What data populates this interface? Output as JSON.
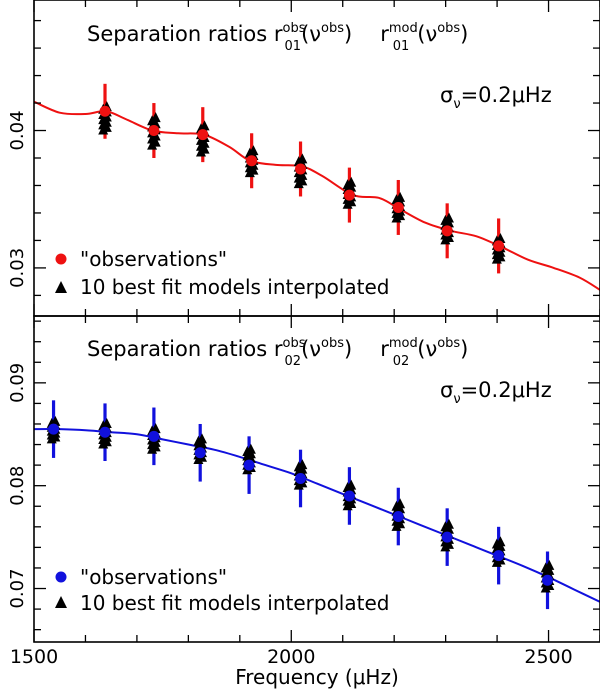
{
  "figure": {
    "xlabel": "Frequency (μHz)",
    "xticks": [
      1500,
      2000,
      2500
    ],
    "xlim": [
      1500,
      2600
    ]
  },
  "chart_data": [
    {
      "type": "scatter",
      "title_prefix": "Separation ratios ",
      "title_obs": "r",
      "title_obs_sub": "01",
      "title_obs_sup": "obs",
      "title_obs_arg": "(ν",
      "title_obs_arg_sup": "obs",
      "title_obs_close": ")",
      "title_mod": "r",
      "title_mod_sub": "01",
      "title_mod_sup": "mod",
      "title_mod_arg": "(ν",
      "title_mod_arg_sup": "obs",
      "title_mod_close": ")",
      "sigma_symbol": "σ",
      "sigma_sub": "ν",
      "sigma_value": "=0.2μHz",
      "color": "#ee1111",
      "ylim": [
        0.0265,
        0.0495
      ],
      "yticks": [
        "0.03",
        "0.04"
      ],
      "ytick_values": [
        0.03,
        0.04
      ],
      "legend": [
        "\"observations\"",
        "10 best fit models interpolated"
      ],
      "legend_position": "bottom-left",
      "curve": {
        "x": [
          1500,
          1550,
          1600,
          1640,
          1680,
          1730,
          1780,
          1830,
          1880,
          1920,
          1970,
          2020,
          2060,
          2120,
          2170,
          2210,
          2260,
          2310,
          2360,
          2410,
          2460,
          2510,
          2560,
          2600
        ],
        "y": [
          0.0421,
          0.0413,
          0.0412,
          0.0414,
          0.0408,
          0.04,
          0.0398,
          0.0397,
          0.0388,
          0.0378,
          0.0375,
          0.0374,
          0.0367,
          0.0353,
          0.0351,
          0.0343,
          0.0333,
          0.0327,
          0.0323,
          0.0315,
          0.0306,
          0.03,
          0.0293,
          0.0284
        ]
      },
      "observations": {
        "x": [
          1638,
          1733,
          1828,
          1923,
          2018,
          2113,
          2208,
          2303,
          2403
        ],
        "y": [
          0.0414,
          0.04,
          0.0397,
          0.0378,
          0.0372,
          0.0353,
          0.0344,
          0.0327,
          0.0316
        ],
        "err": [
          0.002,
          0.002,
          0.002,
          0.002,
          0.002,
          0.002,
          0.002,
          0.002,
          0.002
        ]
      },
      "models": {
        "x": [
          1638,
          1733,
          1828,
          1923,
          2018,
          2113,
          2208,
          2303,
          2403
        ],
        "y_min": [
          0.04,
          0.0389,
          0.0384,
          0.0369,
          0.0361,
          0.0346,
          0.0336,
          0.032,
          0.0306
        ],
        "y_max": [
          0.0417,
          0.0409,
          0.0403,
          0.0385,
          0.0379,
          0.0362,
          0.0351,
          0.0336,
          0.0321
        ]
      }
    },
    {
      "type": "scatter",
      "title_prefix": "Separation ratios ",
      "title_obs": "r",
      "title_obs_sub": "02",
      "title_obs_sup": "obs",
      "title_obs_arg": "(ν",
      "title_obs_arg_sup": "obs",
      "title_obs_close": ")",
      "title_mod": "r",
      "title_mod_sub": "02",
      "title_mod_sup": "mod",
      "title_mod_arg": "(ν",
      "title_mod_arg_sup": "obs",
      "title_mod_close": ")",
      "sigma_symbol": "σ",
      "sigma_sub": "ν",
      "sigma_value": "=0.2μHz",
      "color": "#1111dd",
      "ylim": [
        0.0648,
        0.0965
      ],
      "yticks": [
        "0.07",
        "0.08",
        "0.09"
      ],
      "ytick_values": [
        0.07,
        0.08,
        0.09
      ],
      "legend": [
        "\"observations\"",
        "10 best fit models interpolated"
      ],
      "legend_position": "bottom-left",
      "curve": {
        "x": [
          1500,
          1550,
          1600,
          1650,
          1700,
          1750,
          1800,
          1850,
          1900,
          1950,
          2000,
          2050,
          2100,
          2150,
          2200,
          2250,
          2300,
          2350,
          2400,
          2450,
          2500,
          2550,
          2600
        ],
        "y": [
          0.0855,
          0.0855,
          0.0854,
          0.0852,
          0.085,
          0.0845,
          0.084,
          0.0835,
          0.0828,
          0.082,
          0.0812,
          0.0802,
          0.0792,
          0.0782,
          0.0772,
          0.0762,
          0.0752,
          0.0742,
          0.0732,
          0.0722,
          0.0711,
          0.0699,
          0.0687
        ]
      },
      "observations": {
        "x": [
          1538,
          1638,
          1733,
          1823,
          1918,
          2018,
          2113,
          2208,
          2303,
          2403,
          2498
        ],
        "y": [
          0.0855,
          0.0852,
          0.0848,
          0.0832,
          0.082,
          0.0807,
          0.079,
          0.077,
          0.075,
          0.0732,
          0.0708
        ],
        "err": [
          0.0028,
          0.0028,
          0.0028,
          0.0028,
          0.0028,
          0.0028,
          0.0028,
          0.0028,
          0.0028,
          0.0028,
          0.0028
        ]
      },
      "models": {
        "x": [
          1538,
          1638,
          1733,
          1823,
          1918,
          2018,
          2113,
          2208,
          2303,
          2403,
          2498
        ],
        "y_min": [
          0.0845,
          0.084,
          0.0835,
          0.0825,
          0.0815,
          0.08,
          0.078,
          0.076,
          0.074,
          0.0725,
          0.07
        ],
        "y_max": [
          0.0862,
          0.086,
          0.0855,
          0.0845,
          0.0835,
          0.082,
          0.08,
          0.0782,
          0.0762,
          0.0745,
          0.0722
        ]
      }
    }
  ]
}
